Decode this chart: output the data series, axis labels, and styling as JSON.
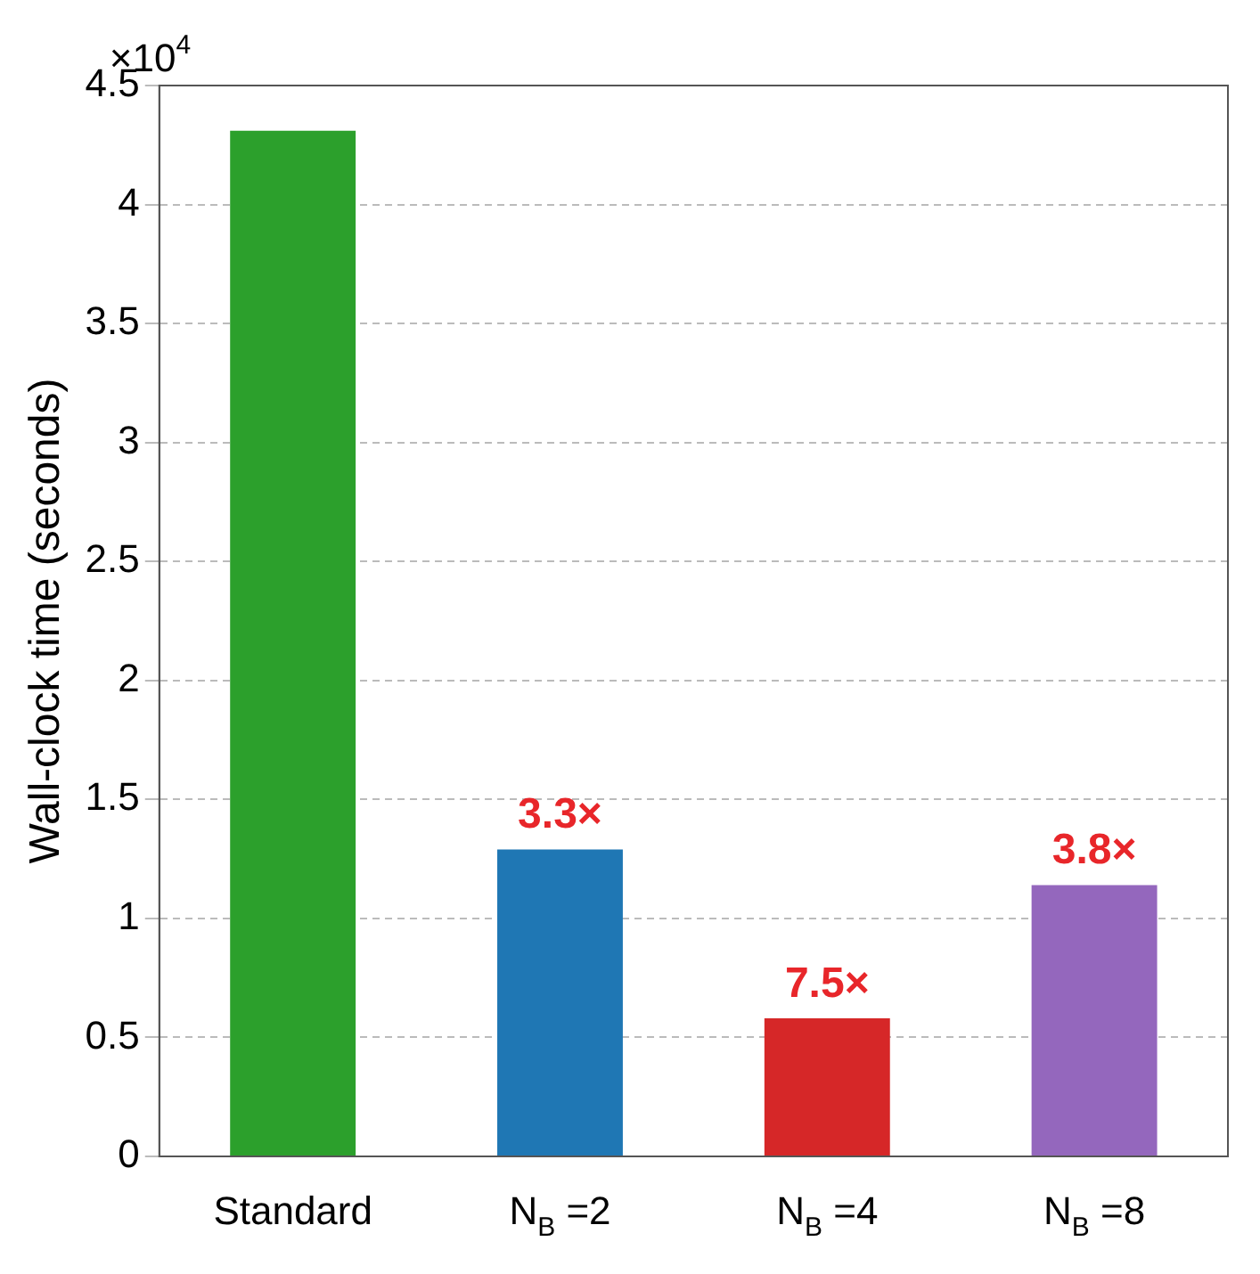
{
  "chart_data": {
    "type": "bar",
    "ylabel": "Wall-clock time (seconds)",
    "categories": [
      "Standard",
      "N$_{B}$ =2",
      "N$_{B}$ =4",
      "N$_{B}$ =8"
    ],
    "values": [
      4.31,
      1.29,
      0.58,
      1.14
    ],
    "colors": [
      "#2ca02c",
      "#1f77b4",
      "#d62728",
      "#9467bd"
    ],
    "ylim": [
      0,
      4.5
    ],
    "yticks": [
      0,
      0.5,
      1,
      1.5,
      2,
      2.5,
      3,
      3.5,
      4,
      4.5
    ],
    "grid": "y",
    "annotations": [
      "×10$^{4}$",
      {
        "text": "3.3×",
        "x": "N$_{B}$ =2",
        "y": 1.29
      },
      {
        "text": "7.5×",
        "x": "N$_{B}$ =4",
        "y": 0.58
      },
      {
        "text": "3.8×",
        "x": "N$_{B}$ =8",
        "y": 1.14
      }
    ]
  }
}
